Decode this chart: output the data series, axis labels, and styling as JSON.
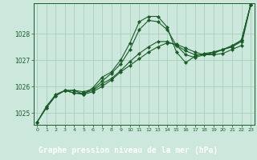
{
  "bg_color": "#cce8dc",
  "plot_bg_color": "#cce8dc",
  "label_bg_color": "#2d6e3e",
  "grid_color": "#aacfbc",
  "line_color": "#1a5c28",
  "marker_color": "#1a5c28",
  "xlabel": "Graphe pression niveau de la mer (hPa)",
  "xlabel_fontsize": 7,
  "yticks": [
    1025,
    1026,
    1027,
    1028
  ],
  "xticks": [
    0,
    1,
    2,
    3,
    4,
    5,
    6,
    7,
    8,
    9,
    10,
    11,
    12,
    13,
    14,
    15,
    16,
    17,
    18,
    19,
    20,
    21,
    22,
    23
  ],
  "ylim": [
    1024.55,
    1029.15
  ],
  "xlim": [
    -0.4,
    23.4
  ],
  "line1_x": [
    0,
    1,
    2,
    3,
    4,
    5,
    6,
    7,
    8,
    9,
    10,
    11,
    12,
    13,
    14,
    15,
    16,
    17,
    18,
    19,
    20,
    21,
    22,
    23
  ],
  "line1_y": [
    1024.65,
    1025.25,
    1025.7,
    1025.85,
    1025.85,
    1025.7,
    1025.95,
    1026.35,
    1026.55,
    1027.0,
    1027.65,
    1028.45,
    1028.65,
    1028.65,
    1028.25,
    1027.3,
    1026.9,
    1027.15,
    1027.25,
    1027.3,
    1027.4,
    1027.55,
    1027.75,
    1029.1
  ],
  "line2_x": [
    0,
    1,
    2,
    3,
    4,
    5,
    6,
    7,
    8,
    9,
    10,
    11,
    12,
    13,
    14,
    15,
    16,
    17,
    18,
    19,
    20,
    21,
    22,
    23
  ],
  "line2_y": [
    1024.65,
    1025.2,
    1025.65,
    1025.85,
    1025.85,
    1025.8,
    1025.9,
    1026.2,
    1026.5,
    1026.85,
    1027.4,
    1028.15,
    1028.5,
    1028.45,
    1028.15,
    1027.55,
    1027.2,
    1027.1,
    1027.2,
    1027.3,
    1027.4,
    1027.5,
    1027.75,
    1029.1
  ],
  "line3_x": [
    0,
    1,
    2,
    3,
    4,
    5,
    6,
    7,
    8,
    9,
    10,
    11,
    12,
    13,
    14,
    15,
    16,
    17,
    18,
    19,
    20,
    21,
    22,
    23
  ],
  "line3_y": [
    1024.65,
    1025.2,
    1025.65,
    1025.85,
    1025.75,
    1025.75,
    1025.85,
    1026.1,
    1026.3,
    1026.6,
    1026.95,
    1027.25,
    1027.5,
    1027.7,
    1027.7,
    1027.55,
    1027.35,
    1027.2,
    1027.2,
    1027.25,
    1027.4,
    1027.5,
    1027.7,
    1029.1
  ],
  "line4_x": [
    3,
    4,
    5,
    6,
    7,
    8,
    9,
    10,
    11,
    12,
    13,
    14,
    15,
    16,
    17,
    18,
    19,
    20,
    21,
    22,
    23
  ],
  "line4_y": [
    1025.85,
    1025.75,
    1025.7,
    1025.8,
    1026.0,
    1026.25,
    1026.55,
    1026.8,
    1027.05,
    1027.3,
    1027.5,
    1027.65,
    1027.6,
    1027.45,
    1027.3,
    1027.2,
    1027.2,
    1027.25,
    1027.4,
    1027.55,
    1029.1
  ]
}
